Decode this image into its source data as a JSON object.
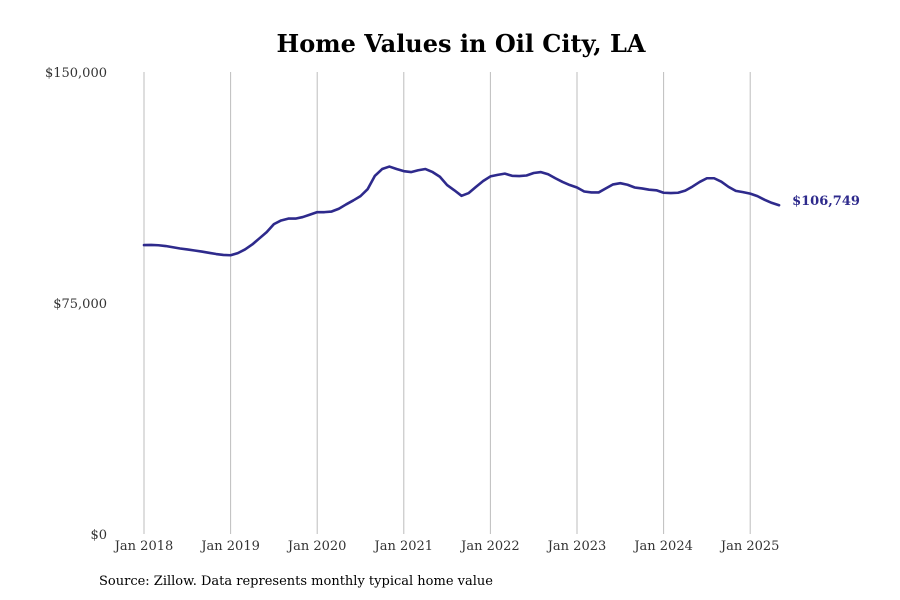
{
  "source": "Source: Zillow. Data represents monthly typical home value",
  "chart_data": {
    "type": "line",
    "title": "Home Values in Oil City, LA",
    "xlabel": "",
    "ylabel": "",
    "ylim": [
      0,
      150000
    ],
    "y_ticks": [
      0,
      75000,
      150000
    ],
    "y_tick_labels": [
      "$0",
      "$75,000",
      "$150,000"
    ],
    "x_ticks": [
      "2018-01",
      "2019-01",
      "2020-01",
      "2021-01",
      "2022-01",
      "2023-01",
      "2024-01",
      "2025-01"
    ],
    "x_tick_labels": [
      "Jan 2018",
      "Jan 2019",
      "Jan 2020",
      "Jan 2021",
      "Jan 2022",
      "Jan 2023",
      "Jan 2024",
      "Jan 2025"
    ],
    "grid": "vertical",
    "line_color": "#2e2a8c",
    "end_label": "$106,749",
    "series": [
      {
        "x": [
          "2018-01",
          "2018-02",
          "2018-03",
          "2018-04",
          "2018-05",
          "2018-06",
          "2018-07",
          "2018-08",
          "2018-09",
          "2018-10",
          "2018-11",
          "2018-12",
          "2019-01",
          "2019-02",
          "2019-03",
          "2019-04",
          "2019-05",
          "2019-06",
          "2019-07",
          "2019-08",
          "2019-09",
          "2019-10",
          "2019-11",
          "2019-12",
          "2020-01",
          "2020-02",
          "2020-03",
          "2020-04",
          "2020-05",
          "2020-06",
          "2020-07",
          "2020-08",
          "2020-09",
          "2020-10",
          "2020-11",
          "2020-12",
          "2021-01",
          "2021-02",
          "2021-03",
          "2021-04",
          "2021-05",
          "2021-06",
          "2021-07",
          "2021-08",
          "2021-09",
          "2021-10",
          "2021-11",
          "2021-12",
          "2022-01",
          "2022-02",
          "2022-03",
          "2022-04",
          "2022-05",
          "2022-06",
          "2022-07",
          "2022-08",
          "2022-09",
          "2022-10",
          "2022-11",
          "2022-12",
          "2023-01",
          "2023-02",
          "2023-03",
          "2023-04",
          "2023-05",
          "2023-06",
          "2023-07",
          "2023-08",
          "2023-09",
          "2023-10",
          "2023-11",
          "2023-12",
          "2024-01",
          "2024-02",
          "2024-03",
          "2024-04",
          "2024-05",
          "2024-06",
          "2024-07",
          "2024-08",
          "2024-09",
          "2024-10",
          "2024-11",
          "2024-12",
          "2025-01",
          "2025-02",
          "2025-03",
          "2025-04",
          "2025-05"
        ],
        "values": [
          93800,
          93850,
          93750,
          93500,
          93100,
          92700,
          92400,
          92050,
          91700,
          91300,
          90900,
          90600,
          90500,
          91200,
          92400,
          94000,
          96000,
          98000,
          100600,
          101800,
          102400,
          102400,
          102900,
          103700,
          104500,
          104500,
          104700,
          105600,
          107000,
          108300,
          109700,
          112000,
          116300,
          118500,
          119300,
          118500,
          117800,
          117500,
          118100,
          118500,
          117500,
          116000,
          113300,
          111600,
          109800,
          110700,
          112700,
          114600,
          116100,
          116600,
          117000,
          116300,
          116200,
          116400,
          117200,
          117500,
          116800,
          115500,
          114300,
          113300,
          112500,
          111200,
          110900,
          110900,
          112200,
          113500,
          113900,
          113400,
          112500,
          112200,
          111800,
          111600,
          110800,
          110700,
          110800,
          111500,
          112800,
          114300,
          115500,
          115500,
          114400,
          112700,
          111400,
          111000,
          110500,
          109700,
          108500,
          107500,
          106749
        ]
      }
    ]
  }
}
